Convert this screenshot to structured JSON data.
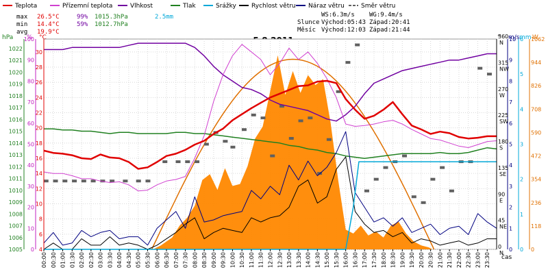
{
  "chart_data": {
    "type": "line",
    "title": "5.8.2011",
    "legend": [
      {
        "label": "Teplota",
        "color": "#e00000",
        "style": "line"
      },
      {
        "label": "Přízemní teplota",
        "color": "#d040d0",
        "style": "line"
      },
      {
        "label": "Vlhkost",
        "color": "#7000a0",
        "style": "line"
      },
      {
        "label": "Tlak",
        "color": "#208020",
        "style": "line"
      },
      {
        "label": "Srážky",
        "color": "#00a8d8",
        "style": "line"
      },
      {
        "label": "Rychlost větru",
        "color": "#000000",
        "style": "line"
      },
      {
        "label": "Náraz větru",
        "color": "#000080",
        "style": "line"
      },
      {
        "label": "Směr větru",
        "color": "#606060",
        "style": "dash"
      }
    ],
    "stats": {
      "rows": [
        {
          "label": "max",
          "temp": "26.5°C",
          "hum": "99%",
          "press": "1015.3hPa",
          "rain": "2.5mm"
        },
        {
          "label": "min",
          "temp": "14.4°C",
          "hum": "59%",
          "press": "1012.7hPa",
          "rain": ""
        },
        {
          "label": "avg",
          "temp": "19.9°C",
          "hum": "",
          "press": "",
          "rain": ""
        }
      ],
      "wind": {
        "ws": "WS:6.3m/s",
        "wg": "WG:9.4m/s"
      },
      "sun": {
        "label": "Slunce",
        "rise": "Východ:05:43",
        "set": "Západ:20:41"
      },
      "moon": {
        "label": "Měsíc",
        "rise": "Východ:12:03",
        "set": "Západ:21:44"
      }
    },
    "axis_units": {
      "hpa": "hPa",
      "pct": "%",
      "degc": "°C",
      "deg": "°",
      "ms": "m/s",
      "mm": "mm",
      "w": "W",
      "time": "čas"
    },
    "axes": {
      "hpa": {
        "ticks": [
          "1005",
          "1006",
          "1007",
          "1008",
          "1009",
          "1010",
          "1011",
          "1012",
          "1013",
          "1014",
          "1015",
          "1016",
          "1017",
          "1018",
          "1019",
          "1020",
          "1021",
          "1022"
        ],
        "range": [
          1005,
          1022.8
        ]
      },
      "pct": {
        "ticks": [
          "0",
          "10",
          "20",
          "30",
          "40",
          "50",
          "60",
          "70",
          "80",
          "90",
          "100"
        ],
        "range": [
          0,
          100
        ]
      },
      "degc": {
        "ticks": [
          "4",
          "6",
          "8",
          "10",
          "12",
          "14",
          "16",
          "18",
          "20",
          "22",
          "24",
          "26",
          "28",
          "30"
        ],
        "range": [
          4,
          31.7
        ]
      },
      "dir": {
        "ticks": [
          "0",
          "45",
          "90",
          "135",
          "180",
          "225",
          "270",
          "315",
          "360"
        ],
        "compass": [
          "N",
          "NE",
          "E",
          "SE",
          "S",
          "SW",
          "W",
          "NW",
          "N"
        ],
        "range": [
          0,
          360
        ]
      },
      "ms": {
        "ticks": [
          "0",
          "1",
          "2",
          "3",
          "4",
          "5",
          "6",
          "7",
          "8",
          "9",
          "10"
        ],
        "range": [
          0,
          10
        ]
      },
      "mm": {
        "ticks": [
          "0",
          "1",
          "2",
          "3",
          "4",
          "5",
          "6"
        ],
        "range": [
          0,
          6
        ]
      },
      "w": {
        "ticks": [
          "0",
          "118",
          "236",
          "354",
          "472",
          "590",
          "708",
          "826",
          "944",
          "1062"
        ],
        "range": [
          0,
          1062
        ]
      }
    },
    "x_ticks": [
      "00:00",
      "00:30",
      "01:00",
      "01:30",
      "02:00",
      "02:30",
      "03:00",
      "03:30",
      "04:00",
      "04:30",
      "05:00",
      "05:30",
      "06:00",
      "06:30",
      "07:00",
      "07:30",
      "08:00",
      "08:30",
      "09:00",
      "09:30",
      "10:00",
      "10:30",
      "11:00",
      "11:30",
      "12:00",
      "12:30",
      "13:00",
      "13:30",
      "14:00",
      "14:30",
      "15:00",
      "15:30",
      "16:00",
      "16:30",
      "17:00",
      "17:30",
      "18:00",
      "18:30",
      "19:00",
      "19:30",
      "20:00",
      "20:30",
      "21:00",
      "21:30",
      "22:00",
      "22:30",
      "23:00",
      "23:30"
    ],
    "x_range_hours": [
      0,
      24
    ],
    "series": {
      "temperature": {
        "name": "Teplota",
        "x": [
          0,
          0.5,
          1,
          1.5,
          2,
          2.5,
          3,
          3.5,
          4,
          4.5,
          5,
          5.5,
          6,
          6.5,
          7,
          7.5,
          8,
          8.5,
          9,
          9.5,
          10,
          10.5,
          11,
          11.5,
          12,
          12.5,
          13,
          13.5,
          14,
          14.5,
          15,
          15.5,
          16,
          16.5,
          17,
          17.5,
          18,
          18.5,
          19,
          19.5,
          20,
          20.5,
          21,
          21.5,
          22,
          22.5,
          23,
          23.5,
          24
        ],
        "y": [
          17.0,
          16.7,
          16.6,
          16.4,
          16.0,
          15.9,
          16.5,
          16.1,
          16.0,
          15.5,
          14.6,
          14.8,
          15.5,
          16.3,
          16.6,
          17.1,
          17.8,
          18.3,
          19.2,
          19.9,
          21.0,
          21.8,
          22.6,
          23.3,
          24.0,
          24.5,
          25.0,
          25.5,
          25.6,
          26.1,
          26.2,
          25.9,
          23.8,
          22.4,
          21.2,
          21.6,
          22.4,
          23.4,
          21.8,
          20.3,
          19.8,
          19.2,
          19.5,
          19.3,
          18.8,
          18.6,
          18.7,
          18.9,
          18.9
        ]
      },
      "ground_temperature": {
        "name": "Přízemní teplota",
        "x": [
          0,
          0.5,
          1,
          1.5,
          2,
          2.5,
          3,
          3.5,
          4,
          4.5,
          5,
          5.5,
          6,
          6.5,
          7,
          7.5,
          8,
          8.5,
          9,
          9.5,
          10,
          10.5,
          11,
          11.5,
          12,
          12.5,
          13,
          13.5,
          14,
          14.5,
          15,
          15.5,
          16,
          16.5,
          17,
          17.5,
          18,
          18.5,
          19,
          19.5,
          20,
          20.5,
          21,
          21.5,
          22,
          22.5,
          23,
          23.5,
          24
        ],
        "y": [
          14.2,
          14.0,
          14.0,
          13.7,
          13.3,
          13.3,
          13.0,
          12.8,
          12.9,
          12.5,
          11.7,
          11.8,
          12.5,
          13.0,
          13.2,
          13.6,
          16.0,
          19.0,
          23.5,
          27.0,
          29.5,
          31.0,
          30.0,
          29.0,
          27.0,
          28.5,
          30.5,
          29.0,
          30.0,
          28.5,
          26.5,
          24.0,
          20.5,
          20.2,
          20.3,
          20.5,
          20.8,
          21.0,
          20.5,
          19.8,
          19.2,
          18.6,
          18.4,
          18.0,
          17.6,
          17.4,
          17.8,
          18.2,
          18.3
        ]
      },
      "humidity": {
        "name": "Vlhkost",
        "x": [
          0,
          0.5,
          1,
          1.5,
          2,
          2.5,
          3,
          3.5,
          4,
          4.5,
          5,
          5.5,
          6,
          6.5,
          7,
          7.5,
          8,
          8.5,
          9,
          9.5,
          10,
          10.5,
          11,
          11.5,
          12,
          12.5,
          13,
          13.5,
          14,
          14.5,
          15,
          15.5,
          16,
          16.5,
          17,
          17.5,
          18,
          18.5,
          19,
          19.5,
          20,
          20.5,
          21,
          21.5,
          22,
          22.5,
          23,
          23.5,
          24
        ],
        "y": [
          95,
          95,
          95,
          96,
          96,
          96,
          96,
          96,
          96,
          97,
          98,
          98,
          98,
          98,
          98,
          98,
          96,
          92,
          87,
          83,
          80,
          77,
          76,
          74,
          71,
          69,
          68,
          67,
          66,
          64,
          62,
          61,
          64,
          68,
          74,
          79,
          81,
          83,
          85,
          86,
          87,
          88,
          89,
          90,
          90,
          91,
          92,
          93,
          93
        ]
      },
      "pressure": {
        "name": "Tlak",
        "x": [
          0,
          0.5,
          1,
          1.5,
          2,
          2.5,
          3,
          3.5,
          4,
          4.5,
          5,
          5.5,
          6,
          6.5,
          7,
          7.5,
          8,
          8.5,
          9,
          9.5,
          10,
          10.5,
          11,
          11.5,
          12,
          12.5,
          13,
          13.5,
          14,
          14.5,
          15,
          15.5,
          16,
          16.5,
          17,
          17.5,
          18,
          18.5,
          19,
          19.5,
          20,
          20.5,
          21,
          21.5,
          22,
          22.5,
          23,
          23.5,
          24
        ],
        "y": [
          1015.2,
          1015.2,
          1015.1,
          1015.1,
          1015.0,
          1015.0,
          1014.9,
          1014.8,
          1014.9,
          1014.9,
          1014.8,
          1014.8,
          1014.8,
          1014.8,
          1014.9,
          1014.9,
          1014.8,
          1014.8,
          1014.7,
          1014.6,
          1014.5,
          1014.4,
          1014.3,
          1014.2,
          1014.1,
          1014.0,
          1013.8,
          1013.7,
          1013.5,
          1013.4,
          1013.2,
          1013.1,
          1012.9,
          1012.8,
          1012.7,
          1012.8,
          1012.9,
          1013.0,
          1013.1,
          1013.1,
          1013.1,
          1013.1,
          1013.2,
          1013.1,
          1013.1,
          1013.2,
          1013.4,
          1013.6,
          1013.5
        ]
      },
      "rain": {
        "name": "Srážky",
        "x": [
          0,
          16.0,
          16.4,
          16.7,
          17.0,
          24
        ],
        "y": [
          0,
          0,
          1.2,
          2.5,
          2.5,
          2.5
        ]
      },
      "wind_speed": {
        "name": "Rychlost větru",
        "x": [
          0,
          0.5,
          1,
          1.5,
          2,
          2.5,
          3,
          3.5,
          4,
          4.5,
          5,
          5.5,
          6,
          6.5,
          7,
          7.5,
          8,
          8.5,
          9,
          9.5,
          10,
          10.5,
          11,
          11.5,
          12,
          12.5,
          13,
          13.5,
          14,
          14.5,
          15,
          15.5,
          16,
          16.5,
          17,
          17.5,
          18,
          18.5,
          19,
          19.5,
          20,
          20.5,
          21,
          21.5,
          22,
          22.5,
          23,
          23.5,
          24
        ],
        "y": [
          0,
          0.3,
          0,
          0,
          0.5,
          0.2,
          0.2,
          0.6,
          0.2,
          0.3,
          0.2,
          0,
          0.2,
          0.5,
          0.8,
          1.2,
          1.5,
          0.5,
          0.8,
          1.0,
          0.9,
          0.8,
          1.5,
          1.3,
          1.5,
          1.6,
          2.0,
          3.0,
          3.3,
          2.2,
          2.5,
          3.8,
          4.4,
          1.8,
          1.2,
          0.8,
          0.9,
          0.6,
          0.8,
          0.3,
          0.5,
          0.4,
          0.2,
          0.3,
          0.4,
          0.2,
          0.3,
          0.5,
          0.5
        ]
      },
      "wind_gust": {
        "name": "Náraz větru",
        "x": [
          0,
          0.5,
          1,
          1.5,
          2,
          2.5,
          3,
          3.5,
          4,
          4.5,
          5,
          5.5,
          6,
          6.5,
          7,
          7.5,
          8,
          8.5,
          9,
          9.5,
          10,
          10.5,
          11,
          11.5,
          12,
          12.5,
          13,
          13.5,
          14,
          14.5,
          15,
          15.5,
          16,
          16.5,
          17,
          17.5,
          18,
          18.5,
          19,
          19.5,
          20,
          20.5,
          21,
          21.5,
          22,
          22.5,
          23,
          23.5,
          24
        ],
        "y": [
          0.3,
          0.8,
          0.2,
          0.3,
          0.9,
          0.6,
          0.8,
          0.9,
          0.5,
          0.6,
          0.6,
          0.2,
          1.0,
          1.4,
          1.8,
          1.0,
          2.5,
          1.3,
          1.4,
          1.6,
          1.7,
          1.8,
          2.8,
          2.4,
          3.0,
          2.6,
          4.0,
          3.3,
          4.2,
          3.5,
          3.9,
          4.6,
          5.6,
          2.7,
          2.0,
          1.3,
          1.5,
          1.1,
          1.5,
          0.8,
          1.0,
          1.2,
          0.7,
          1.0,
          1.1,
          0.7,
          1.7,
          1.3,
          1.0
        ]
      },
      "wind_direction": {
        "name": "Směr větru",
        "x": [
          0.1,
          0.6,
          1.1,
          1.6,
          2.1,
          2.6,
          3.1,
          3.6,
          4.3,
          5.0,
          5.5,
          6.4,
          7.1,
          7.6,
          8.1,
          8.6,
          9.1,
          9.6,
          10.0,
          10.6,
          11.1,
          11.6,
          12.1,
          12.6,
          13.1,
          13.6,
          14.1,
          14.6,
          15.1,
          15.6,
          16.1,
          16.6,
          17.1,
          17.6,
          18.1,
          18.6,
          19.1,
          19.6,
          20.1,
          20.6,
          21.1,
          21.6,
          22.1,
          22.6,
          23.1,
          23.6
        ],
        "y": [
          117,
          117,
          117,
          117,
          117,
          117,
          117,
          117,
          117,
          117,
          117,
          150,
          150,
          150,
          150,
          180,
          200,
          185,
          175,
          205,
          230,
          225,
          160,
          245,
          190,
          220,
          225,
          130,
          188,
          270,
          320,
          350,
          100,
          120,
          140,
          150,
          160,
          90,
          80,
          120,
          140,
          100,
          150,
          150,
          310,
          300
        ]
      },
      "solar": {
        "name": "",
        "x": [
          0,
          5.8,
          6.2,
          6.8,
          7.2,
          7.6,
          8.0,
          8.4,
          8.8,
          9.2,
          9.6,
          10.0,
          10.4,
          10.8,
          11.2,
          11.6,
          12.0,
          12.4,
          12.8,
          13.2,
          13.6,
          14.0,
          14.4,
          14.8,
          15.2,
          15.6,
          16.0,
          16.4,
          16.8,
          17.2,
          17.6,
          18.0,
          18.4,
          18.8,
          19.2,
          19.6,
          20.0,
          20.4,
          20.6,
          24
        ],
        "y": [
          0,
          0,
          20,
          60,
          120,
          160,
          220,
          350,
          380,
          300,
          410,
          320,
          330,
          420,
          560,
          620,
          800,
          980,
          780,
          900,
          790,
          880,
          830,
          860,
          640,
          350,
          100,
          80,
          120,
          70,
          90,
          60,
          120,
          140,
          80,
          40,
          20,
          10,
          0,
          0
        ]
      },
      "solar_max": {
        "name": "",
        "x_start": 5.72,
        "x_end": 20.68,
        "peak": 960
      }
    }
  }
}
